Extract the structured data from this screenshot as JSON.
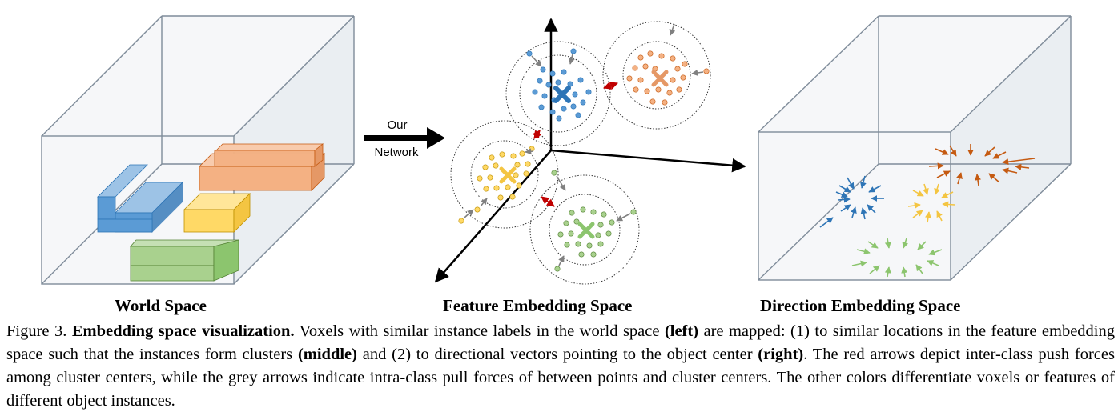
{
  "panels": {
    "world": "World Space",
    "feature": "Feature Embedding Space",
    "direction": "Direction Embedding Space"
  },
  "network_label": {
    "line1": "Our",
    "line2": "Network"
  },
  "caption": {
    "figure_no": "Figure 3.",
    "title": "Embedding space visualization.",
    "t1": " Voxels with similar instance labels in the world space ",
    "left": "(left)",
    "t2": " are mapped: (1) to similar locations in the feature embedding space such that the instances form clusters ",
    "middle": "(middle)",
    "t3": " and (2) to directional vectors pointing to the object center ",
    "right": "(right)",
    "t4": ".  The red arrows depict inter-class push forces among cluster centers, while the grey arrows indicate intra-class pull forces of between points and cluster centers. The other colors differentiate voxels or features of different object instances."
  },
  "colors": {
    "blue": "#5b9bd5",
    "orange": "#f4b183",
    "yellow": "#ffd966",
    "green": "#a9d18e",
    "push_red": "#c00000",
    "pull_grey": "#808080",
    "box_edge": "#7f8c9a"
  }
}
